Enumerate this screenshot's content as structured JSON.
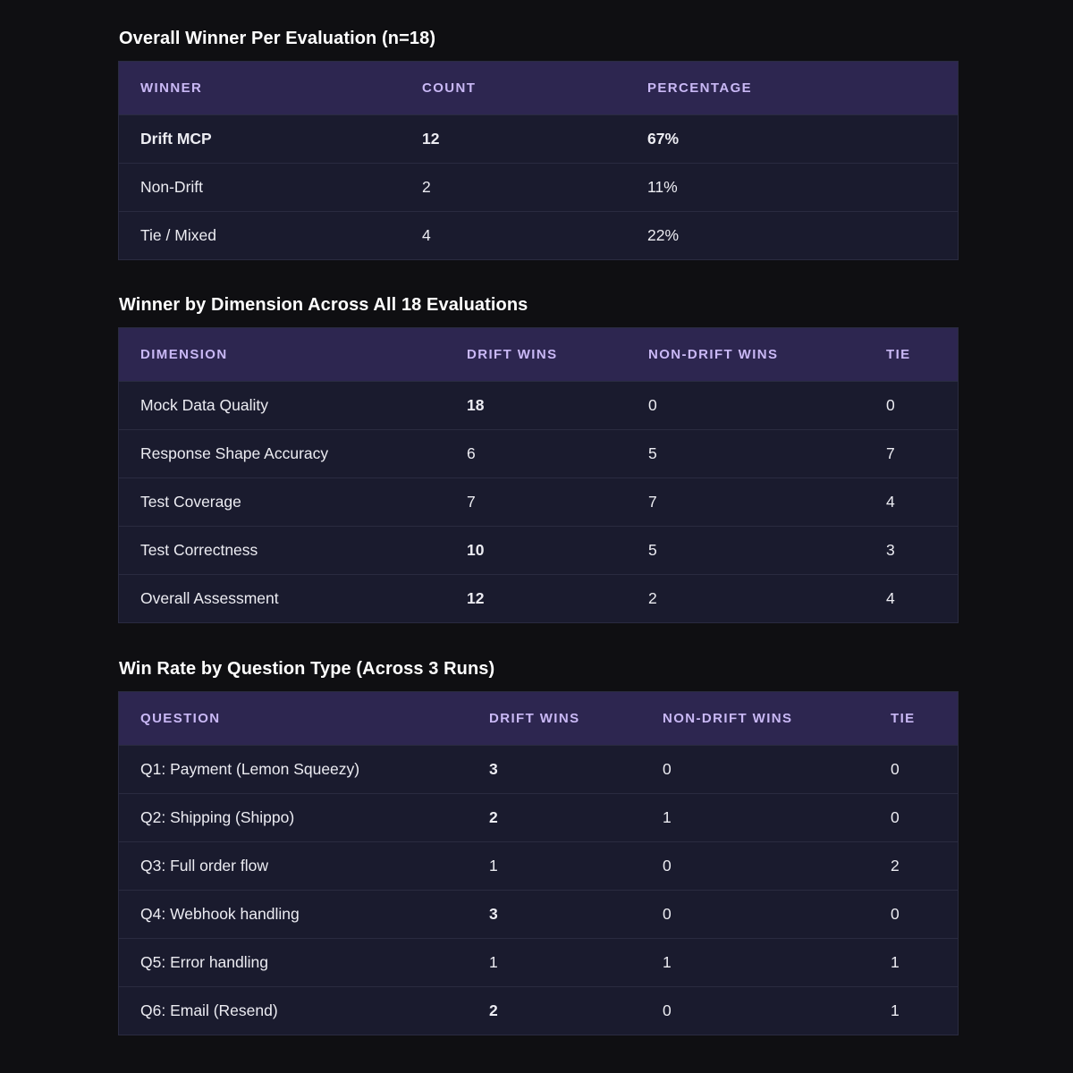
{
  "section1": {
    "title": "Overall Winner Per Evaluation (n=18)",
    "headers": [
      "WINNER",
      "COUNT",
      "PERCENTAGE"
    ],
    "rows": [
      {
        "winner": "Drift MCP",
        "count": "12",
        "percentage": "67%"
      },
      {
        "winner": "Non-Drift",
        "count": "2",
        "percentage": "11%"
      },
      {
        "winner": "Tie / Mixed",
        "count": "4",
        "percentage": "22%"
      }
    ]
  },
  "section2": {
    "title": "Winner by Dimension Across All 18 Evaluations",
    "headers": [
      "DIMENSION",
      "DRIFT WINS",
      "NON-DRIFT WINS",
      "TIE"
    ],
    "rows": [
      {
        "dimension": "Mock Data Quality",
        "drift": "18",
        "nondrift": "0",
        "tie": "0"
      },
      {
        "dimension": "Response Shape Accuracy",
        "drift": "6",
        "nondrift": "5",
        "tie": "7"
      },
      {
        "dimension": "Test Coverage",
        "drift": "7",
        "nondrift": "7",
        "tie": "4"
      },
      {
        "dimension": "Test Correctness",
        "drift": "10",
        "nondrift": "5",
        "tie": "3"
      },
      {
        "dimension": "Overall Assessment",
        "drift": "12",
        "nondrift": "2",
        "tie": "4"
      }
    ]
  },
  "section3": {
    "title": "Win Rate by Question Type (Across 3 Runs)",
    "headers": [
      "QUESTION",
      "DRIFT WINS",
      "NON-DRIFT WINS",
      "TIE"
    ],
    "rows": [
      {
        "question": "Q1: Payment (Lemon Squeezy)",
        "drift": "3",
        "nondrift": "0",
        "tie": "0"
      },
      {
        "question": "Q2: Shipping (Shippo)",
        "drift": "2",
        "nondrift": "1",
        "tie": "0"
      },
      {
        "question": "Q3: Full order flow",
        "drift": "1",
        "nondrift": "0",
        "tie": "2"
      },
      {
        "question": "Q4: Webhook handling",
        "drift": "3",
        "nondrift": "0",
        "tie": "0"
      },
      {
        "question": "Q5: Error handling",
        "drift": "1",
        "nondrift": "1",
        "tie": "1"
      },
      {
        "question": "Q6: Email (Resend)",
        "drift": "2",
        "nondrift": "0",
        "tie": "1"
      }
    ]
  },
  "colors": {
    "background": "#0f0f12",
    "table_body": "#1a1b2e",
    "table_header": "#2d2650",
    "header_text": "#c9b8f5",
    "highlight": "#a685ee"
  }
}
